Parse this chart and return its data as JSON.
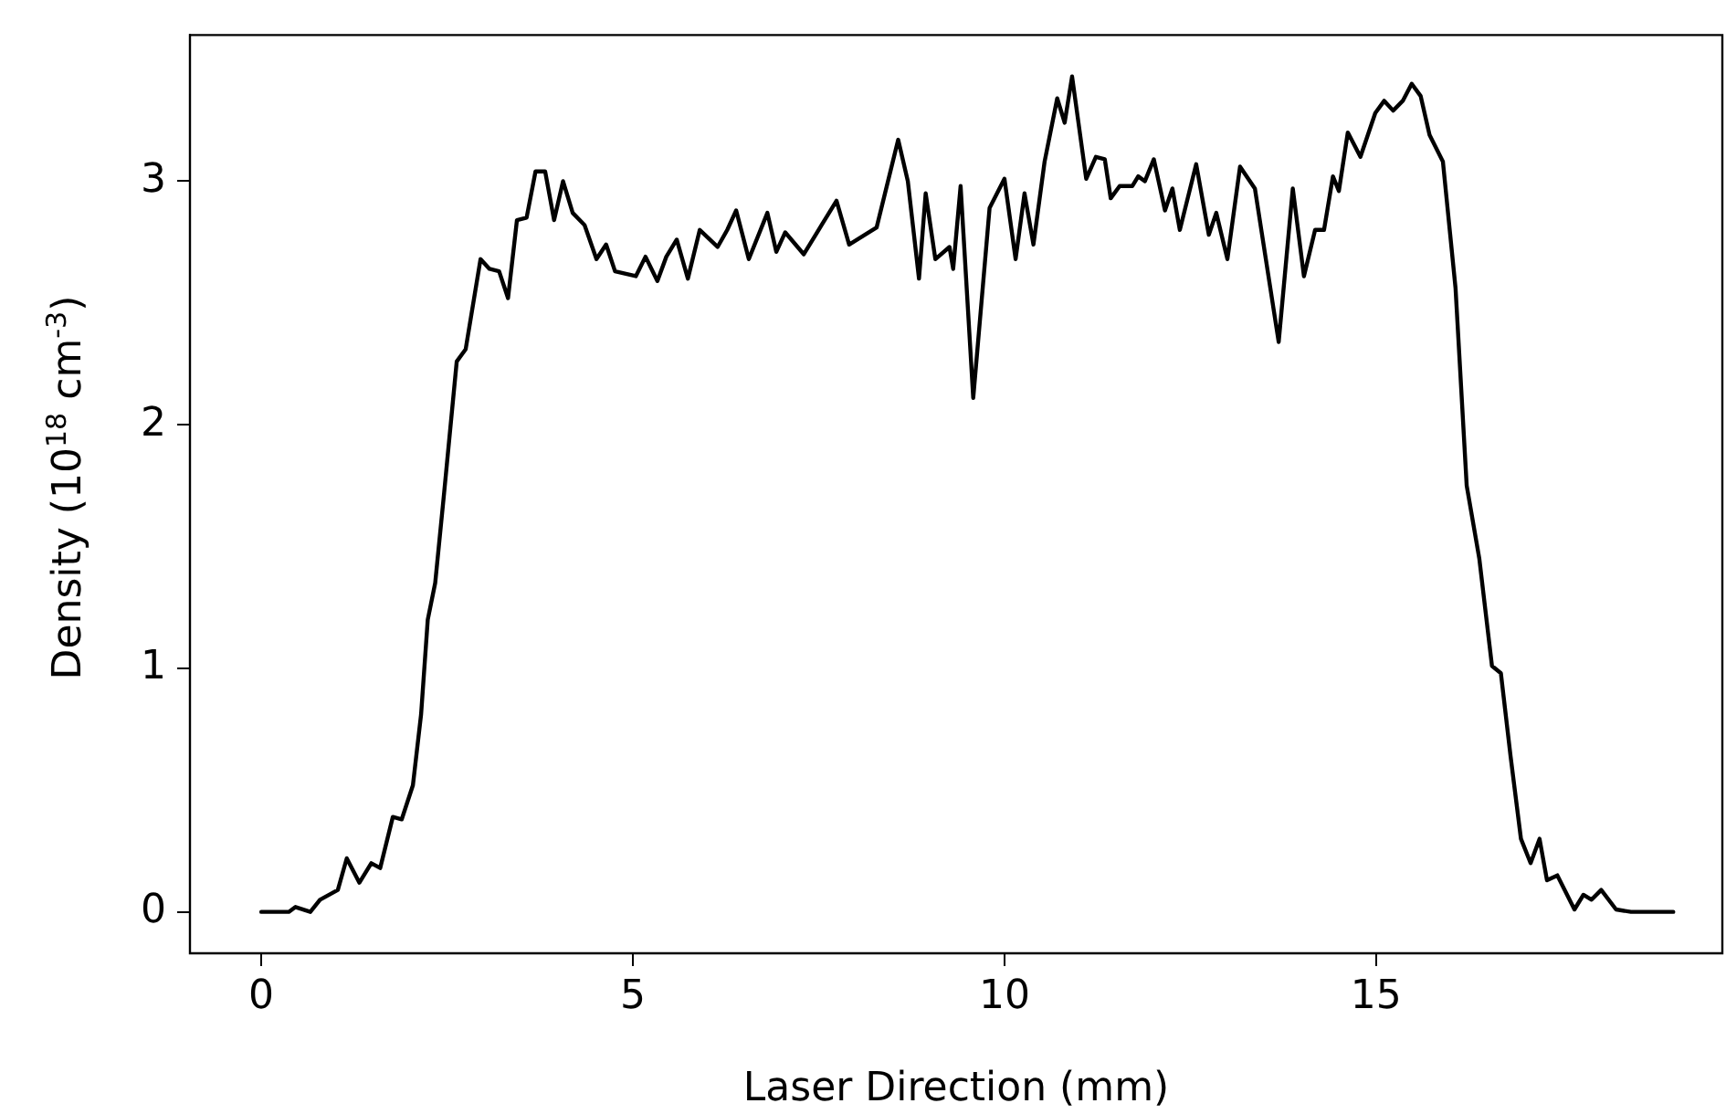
{
  "chart_data": {
    "type": "line",
    "xlabel": "Laser Direction (mm)",
    "ylabel": "Density (10$^{18}$ cm$^{-3}$)",
    "xlim": [
      -0.96,
      19.66
    ],
    "ylim": [
      -0.17,
      3.6
    ],
    "xticks": [
      0,
      5,
      10,
      15
    ],
    "yticks": [
      0,
      1,
      2,
      3
    ],
    "grid": false,
    "legend": false,
    "marker": "none",
    "line_style": "solid",
    "series": [
      {
        "color": "#000000",
        "x": [
          0,
          0.37,
          0.46,
          0.66,
          0.79,
          1.03,
          1.15,
          1.32,
          1.48,
          1.6,
          1.77,
          1.89,
          2.04,
          2.15,
          2.24,
          2.34,
          2.46,
          2.63,
          2.75,
          2.95,
          3.07,
          3.2,
          3.32,
          3.44,
          3.57,
          3.69,
          3.82,
          3.94,
          4.06,
          4.19,
          4.35,
          4.51,
          4.64,
          4.76,
          5.04,
          5.17,
          5.33,
          5.45,
          5.59,
          5.74,
          5.9,
          6.14,
          6.27,
          6.39,
          6.56,
          6.81,
          6.93,
          7.05,
          7.3,
          7.54,
          7.74,
          7.91,
          8.28,
          8.57,
          8.7,
          8.85,
          8.94,
          9.07,
          9.26,
          9.31,
          9.41,
          9.58,
          9.8,
          10.0,
          10.15,
          10.27,
          10.39,
          10.54,
          10.71,
          10.81,
          10.91,
          11.1,
          11.23,
          11.35,
          11.43,
          11.55,
          11.72,
          11.8,
          11.89,
          12.01,
          12.16,
          12.26,
          12.36,
          12.58,
          12.75,
          12.85,
          13.0,
          13.17,
          13.37,
          13.69,
          13.88,
          14.03,
          14.18,
          14.3,
          14.42,
          14.5,
          14.62,
          14.79,
          14.99,
          15.11,
          15.23,
          15.36,
          15.48,
          15.6,
          15.72,
          15.9,
          16.07,
          16.22,
          16.39,
          16.56,
          16.68,
          16.81,
          16.95,
          17.08,
          17.2,
          17.3,
          17.44,
          17.67,
          17.79,
          17.9,
          18.03,
          18.23,
          18.43,
          19.0
        ],
        "values": [
          0,
          0,
          0.02,
          0,
          0.05,
          0.09,
          0.22,
          0.12,
          0.2,
          0.18,
          0.39,
          0.38,
          0.52,
          0.81,
          1.2,
          1.35,
          1.72,
          2.26,
          2.31,
          2.68,
          2.64,
          2.63,
          2.52,
          2.84,
          2.85,
          3.04,
          3.04,
          2.84,
          3.0,
          2.87,
          2.82,
          2.68,
          2.74,
          2.63,
          2.61,
          2.69,
          2.59,
          2.69,
          2.76,
          2.6,
          2.8,
          2.73,
          2.8,
          2.88,
          2.68,
          2.87,
          2.71,
          2.79,
          2.7,
          2.82,
          2.92,
          2.74,
          2.81,
          3.17,
          3.0,
          2.6,
          2.95,
          2.68,
          2.73,
          2.64,
          2.98,
          2.11,
          2.89,
          3.01,
          2.68,
          2.95,
          2.74,
          3.08,
          3.34,
          3.24,
          3.43,
          3.01,
          3.1,
          3.09,
          2.93,
          2.98,
          2.98,
          3.02,
          3.0,
          3.09,
          2.88,
          2.97,
          2.8,
          3.07,
          2.78,
          2.87,
          2.68,
          3.06,
          2.97,
          2.34,
          2.97,
          2.61,
          2.8,
          2.8,
          3.02,
          2.96,
          3.2,
          3.1,
          3.28,
          3.33,
          3.29,
          3.33,
          3.4,
          3.35,
          3.19,
          3.08,
          2.56,
          1.75,
          1.45,
          1.01,
          0.98,
          0.64,
          0.3,
          0.2,
          0.3,
          0.13,
          0.15,
          0.01,
          0.07,
          0.05,
          0.09,
          0.01,
          0,
          0
        ]
      }
    ]
  }
}
